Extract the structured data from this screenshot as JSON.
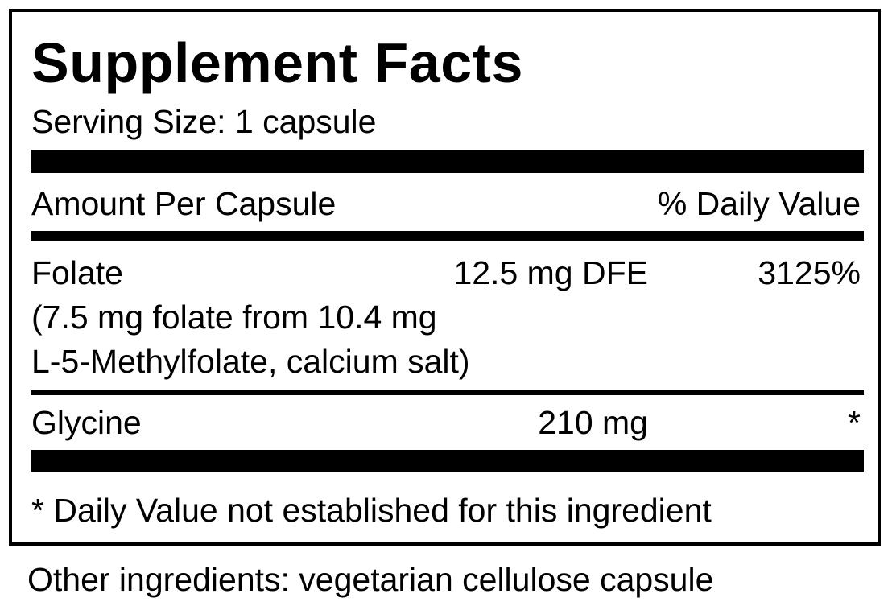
{
  "title": "Supplement Facts",
  "serving_size": "Serving Size: 1 capsule",
  "header": {
    "amount": "Amount Per Capsule",
    "daily_value": "% Daily Value"
  },
  "rows": [
    {
      "name": "Folate",
      "amount": "12.5 mg DFE",
      "daily_value": "3125%",
      "detail": [
        "(7.5 mg folate from 10.4 mg",
        "L-5-Methylfolate, calcium salt)"
      ]
    },
    {
      "name": "Glycine",
      "amount": "210 mg",
      "daily_value": "*"
    }
  ],
  "footnote": "* Daily Value not established for this ingredient",
  "other_ingredients": "Other ingredients: vegetarian cellulose capsule"
}
